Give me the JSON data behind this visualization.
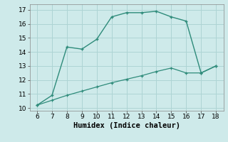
{
  "xlabel": "Humidex (Indice chaleur)",
  "line1_x": [
    6,
    7,
    8,
    9,
    10,
    11,
    12,
    13,
    14,
    15,
    16,
    17,
    18
  ],
  "line1_y": [
    10.2,
    10.9,
    14.35,
    14.2,
    14.9,
    16.5,
    16.8,
    16.8,
    16.9,
    16.5,
    16.2,
    12.5,
    13.0
  ],
  "line2_x": [
    6,
    7,
    8,
    9,
    10,
    11,
    12,
    13,
    14,
    15,
    16,
    17,
    18
  ],
  "line2_y": [
    10.2,
    10.55,
    10.9,
    11.2,
    11.5,
    11.8,
    12.05,
    12.3,
    12.6,
    12.85,
    12.5,
    12.5,
    13.0
  ],
  "line_color": "#2e8b7a",
  "bg_color": "#ceeaea",
  "grid_color": "#aed4d4",
  "xlim": [
    5.5,
    18.5
  ],
  "ylim": [
    9.8,
    17.4
  ],
  "xticks": [
    6,
    7,
    8,
    9,
    10,
    11,
    12,
    13,
    14,
    15,
    16,
    17,
    18
  ],
  "yticks": [
    10,
    11,
    12,
    13,
    14,
    15,
    16,
    17
  ],
  "tick_fontsize": 6.5,
  "xlabel_fontsize": 7.5
}
